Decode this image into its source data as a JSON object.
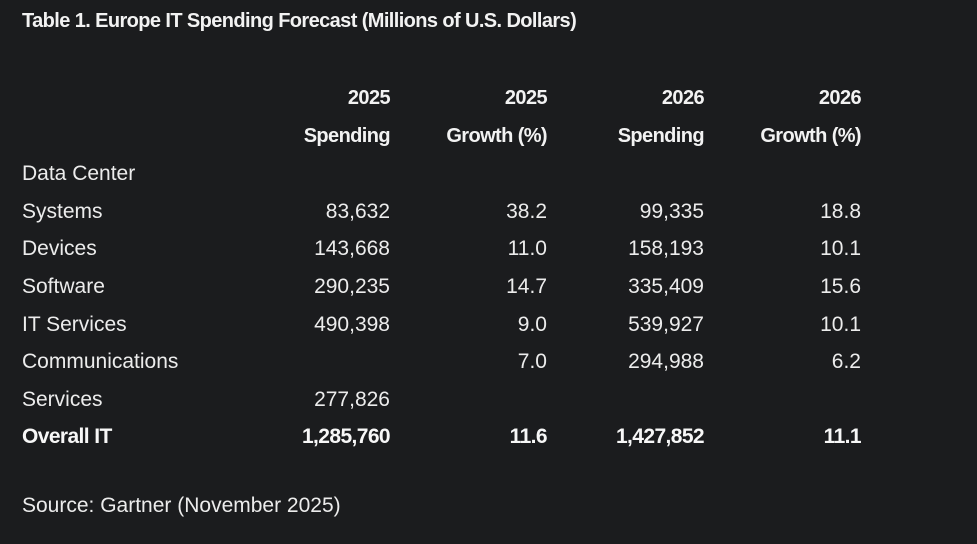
{
  "title": "Table 1. Europe IT Spending Forecast (Millions of U.S. Dollars)",
  "table": {
    "header_row1": [
      "",
      "2025",
      "2025",
      "2026",
      "2026"
    ],
    "header_row2": [
      "",
      "Spending",
      "Growth (%)",
      "Spending",
      "Growth (%)"
    ],
    "rows": [
      [
        "Data Center",
        "",
        "",
        "",
        ""
      ],
      [
        "Systems",
        "83,632",
        "38.2",
        "99,335",
        "18.8"
      ],
      [
        "Devices",
        "143,668",
        "11.0",
        "158,193",
        "10.1"
      ],
      [
        "Software",
        "290,235",
        "14.7",
        "335,409",
        "15.6"
      ],
      [
        "IT Services",
        "490,398",
        "9.0",
        "539,927",
        "10.1"
      ],
      [
        "Communications",
        "",
        "7.0",
        "294,988",
        "6.2"
      ],
      [
        "Services",
        "277,826",
        "",
        "",
        ""
      ],
      [
        "Overall IT",
        "1,285,760",
        "11.6",
        "1,427,852",
        "11.1"
      ]
    ]
  },
  "source": "Source: Gartner (November 2025)",
  "colors": {
    "background": "#1b1c1e",
    "text": "#ececec"
  }
}
